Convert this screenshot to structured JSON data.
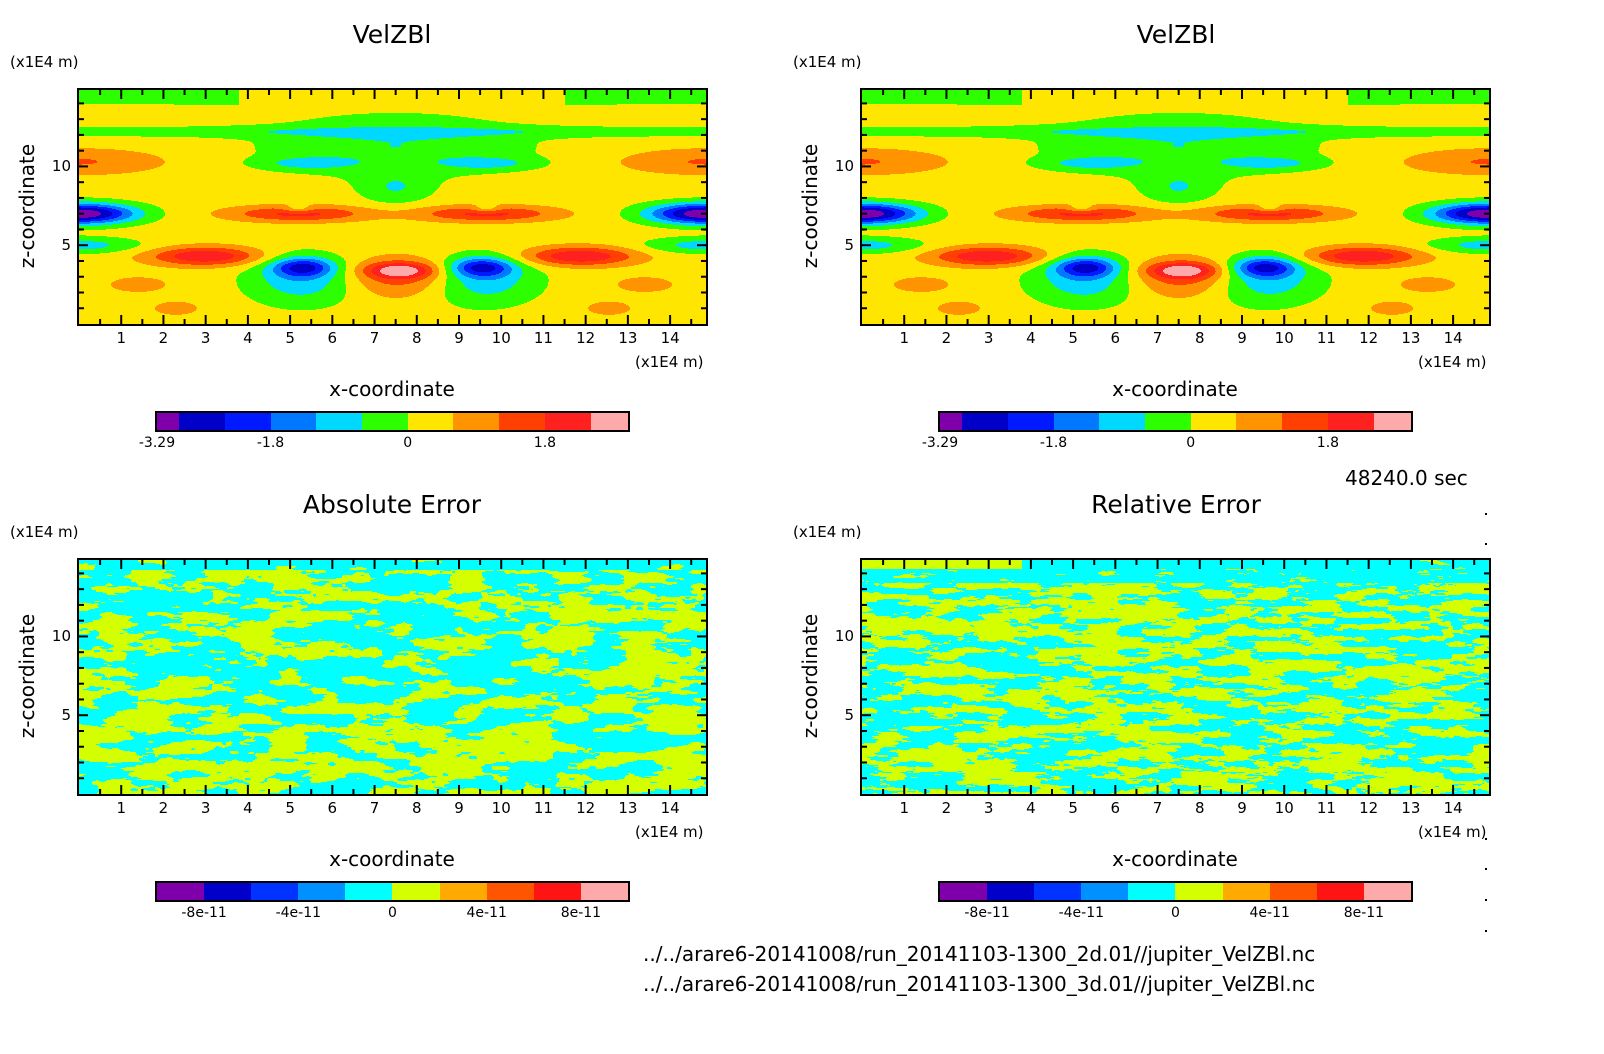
{
  "time_label": "48240.0 sec",
  "file_paths": [
    "../../arare6-20141008/run_20141103-1300_2d.01//jupiter_VelZBl.nc",
    "../../arare6-20141008/run_20141103-1300_3d.01//jupiter_VelZBl.nc"
  ],
  "chart_data": [
    {
      "type": "heatmap",
      "title": "VelZBl",
      "xlabel": "x-coordinate",
      "ylabel": "z-coordinate",
      "x_unit": "(x1E4 m)",
      "z_unit": "(x1E4 m)",
      "xlim": [
        0,
        14.85
      ],
      "zlim": [
        0,
        14.85
      ],
      "x_ticks": [
        "1",
        "2",
        "3",
        "4",
        "5",
        "6",
        "7",
        "8",
        "9",
        "10",
        "11",
        "12",
        "13",
        "14"
      ],
      "z_ticks": [
        "5",
        "10"
      ],
      "levels": [
        -3.29,
        -3.0,
        -2.4,
        -1.8,
        -1.2,
        -0.6,
        0,
        0.6,
        1.2,
        1.8,
        2.4,
        2.89
      ],
      "colors": [
        "#7f00aa",
        "#0000c8",
        "#0019ff",
        "#0078ff",
        "#00d8ff",
        "#2dff00",
        "#ffe600",
        "#ff9400",
        "#ff4000",
        "#ff2020",
        "#ffaaaa"
      ],
      "colorbar_labels": [
        {
          "value": -3.29,
          "text": "-3.29"
        },
        {
          "value": -1.8,
          "text": "-1.8"
        },
        {
          "value": 0,
          "text": "0"
        },
        {
          "value": 1.8,
          "text": "1.8"
        }
      ],
      "field": "symmetric"
    },
    {
      "type": "heatmap",
      "title": "VelZBl",
      "xlabel": "x-coordinate",
      "ylabel": "z-coordinate",
      "x_unit": "(x1E4 m)",
      "z_unit": "(x1E4 m)",
      "xlim": [
        0,
        14.85
      ],
      "zlim": [
        0,
        14.85
      ],
      "x_ticks": [
        "1",
        "2",
        "3",
        "4",
        "5",
        "6",
        "7",
        "8",
        "9",
        "10",
        "11",
        "12",
        "13",
        "14"
      ],
      "z_ticks": [
        "5",
        "10"
      ],
      "levels": [
        -3.29,
        -3.0,
        -2.4,
        -1.8,
        -1.2,
        -0.6,
        0,
        0.6,
        1.2,
        1.8,
        2.4,
        2.89
      ],
      "colors": [
        "#7f00aa",
        "#0000c8",
        "#0019ff",
        "#0078ff",
        "#00d8ff",
        "#2dff00",
        "#ffe600",
        "#ff9400",
        "#ff4000",
        "#ff2020",
        "#ffaaaa"
      ],
      "colorbar_labels": [
        {
          "value": -3.29,
          "text": "-3.29"
        },
        {
          "value": -1.8,
          "text": "-1.8"
        },
        {
          "value": 0,
          "text": "0"
        },
        {
          "value": 1.8,
          "text": "1.8"
        }
      ],
      "field": "symmetric"
    },
    {
      "type": "heatmap",
      "title": "Absolute Error",
      "xlabel": "x-coordinate",
      "ylabel": "z-coordinate",
      "x_unit": "(x1E4 m)",
      "z_unit": "(x1E4 m)",
      "xlim": [
        0,
        14.85
      ],
      "zlim": [
        0,
        14.85
      ],
      "x_ticks": [
        "1",
        "2",
        "3",
        "4",
        "5",
        "6",
        "7",
        "8",
        "9",
        "10",
        "11",
        "12",
        "13",
        "14"
      ],
      "z_ticks": [
        "5",
        "10"
      ],
      "levels": [
        -1e-10,
        -8e-11,
        -6e-11,
        -4e-11,
        -2e-11,
        0,
        2e-11,
        4e-11,
        6e-11,
        8e-11,
        1e-10
      ],
      "colors": [
        "#7f00aa",
        "#0000c8",
        "#0033ff",
        "#0090ff",
        "#00ffff",
        "#d4ff00",
        "#ffaa00",
        "#ff5500",
        "#ff1414",
        "#ffaaaa"
      ],
      "colorbar_labels": [
        {
          "value": -8e-11,
          "text": "-8e-11"
        },
        {
          "value": -4e-11,
          "text": "-4e-11"
        },
        {
          "value": 0,
          "text": "0"
        },
        {
          "value": 4e-11,
          "text": "4e-11"
        },
        {
          "value": 8e-11,
          "text": "8e-11"
        }
      ],
      "field": "noise-absolute"
    },
    {
      "type": "heatmap",
      "title": "Relative Error",
      "xlabel": "x-coordinate",
      "ylabel": "z-coordinate",
      "x_unit": "(x1E4 m)",
      "z_unit": "(x1E4 m)",
      "xlim": [
        0,
        14.85
      ],
      "zlim": [
        0,
        14.85
      ],
      "x_ticks": [
        "1",
        "2",
        "3",
        "4",
        "5",
        "6",
        "7",
        "8",
        "9",
        "10",
        "11",
        "12",
        "13",
        "14"
      ],
      "z_ticks": [
        "5",
        "10"
      ],
      "levels": [
        -1e-10,
        -8e-11,
        -6e-11,
        -4e-11,
        -2e-11,
        0,
        2e-11,
        4e-11,
        6e-11,
        8e-11,
        1e-10
      ],
      "colors": [
        "#7f00aa",
        "#0000c8",
        "#0033ff",
        "#0090ff",
        "#00ffff",
        "#d4ff00",
        "#ffaa00",
        "#ff5500",
        "#ff1414",
        "#ffaaaa"
      ],
      "colorbar_labels": [
        {
          "value": -8e-11,
          "text": "-8e-11"
        },
        {
          "value": -4e-11,
          "text": "-4e-11"
        },
        {
          "value": 0,
          "text": "0"
        },
        {
          "value": 4e-11,
          "text": "4e-11"
        },
        {
          "value": 8e-11,
          "text": "8e-11"
        }
      ],
      "field": "noise-relative"
    }
  ]
}
